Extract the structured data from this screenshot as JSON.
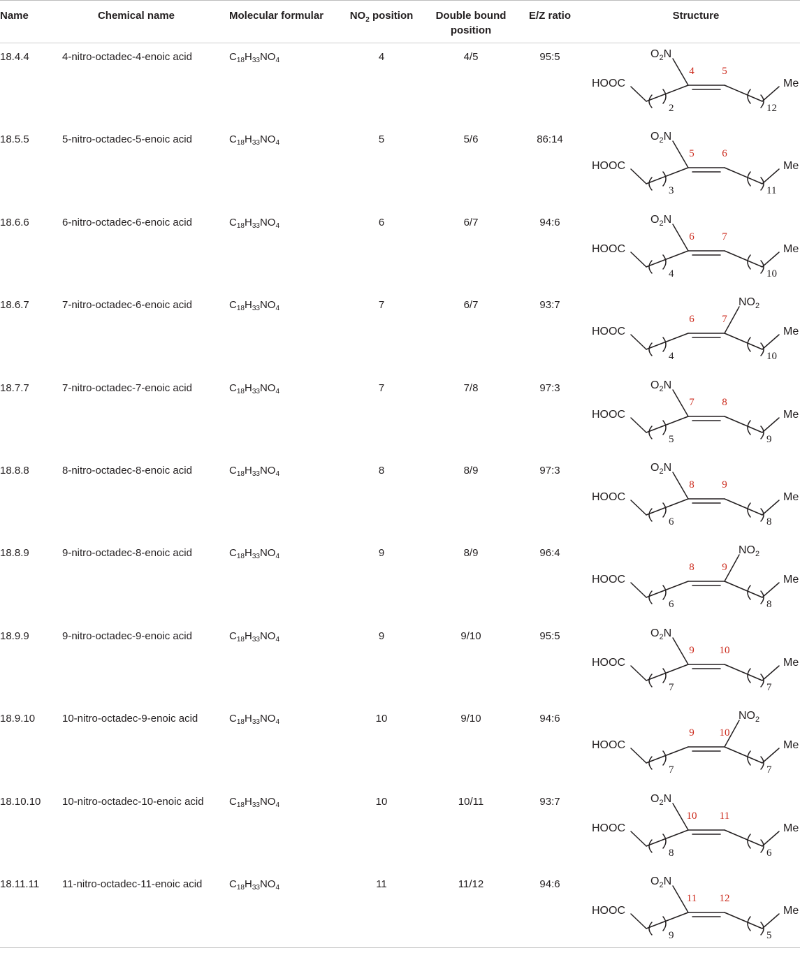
{
  "headers": {
    "name": "Name",
    "chemical_name": "Chemical name",
    "molecular_formular": "Molecular formular",
    "no2_prefix": "NO",
    "no2_sub": "2",
    "no2_suffix": " position",
    "double_bound_line1": "Double bound",
    "double_bound_line2": "position",
    "ez_ratio": "E/Z ratio",
    "structure": "Structure"
  },
  "formula": {
    "c": "C",
    "c_sub": "18",
    "h": "H",
    "h_sub": "33",
    "n": "NO",
    "o_sub": "4"
  },
  "structure_text": {
    "hooc": "HOOC",
    "me": "Me",
    "o2n_o": "O",
    "o2n_sub": "2",
    "o2n_n": "N",
    "no2_no": "NO",
    "no2_sub": "2"
  },
  "colors": {
    "text": "#231f20",
    "locant": "#cc2a1c",
    "rule": "#bdbdbd"
  },
  "rows": [
    {
      "name": "18.4.4",
      "chemical_name": "4-nitro-octadec-4-enoic acid",
      "no2_position": "4",
      "double_bound_position": "4/5",
      "ez_ratio": "95:5",
      "structure": {
        "nitro_on": "left",
        "locant_left": "4",
        "locant_right": "5",
        "n_left": "2",
        "n_right": "12"
      }
    },
    {
      "name": "18.5.5",
      "chemical_name": "5-nitro-octadec-5-enoic acid",
      "no2_position": "5",
      "double_bound_position": "5/6",
      "ez_ratio": "86:14",
      "structure": {
        "nitro_on": "left",
        "locant_left": "5",
        "locant_right": "6",
        "n_left": "3",
        "n_right": "11"
      }
    },
    {
      "name": "18.6.6",
      "chemical_name": "6-nitro-octadec-6-enoic acid",
      "no2_position": "6",
      "double_bound_position": "6/7",
      "ez_ratio": "94:6",
      "structure": {
        "nitro_on": "left",
        "locant_left": "6",
        "locant_right": "7",
        "n_left": "4",
        "n_right": "10"
      }
    },
    {
      "name": "18.6.7",
      "chemical_name": "7-nitro-octadec-6-enoic acid",
      "no2_position": "7",
      "double_bound_position": "6/7",
      "ez_ratio": "93:7",
      "structure": {
        "nitro_on": "right",
        "locant_left": "6",
        "locant_right": "7",
        "n_left": "4",
        "n_right": "10"
      }
    },
    {
      "name": "18.7.7",
      "chemical_name": "7-nitro-octadec-7-enoic acid",
      "no2_position": "7",
      "double_bound_position": "7/8",
      "ez_ratio": "97:3",
      "structure": {
        "nitro_on": "left",
        "locant_left": "7",
        "locant_right": "8",
        "n_left": "5",
        "n_right": "9"
      }
    },
    {
      "name": "18.8.8",
      "chemical_name": "8-nitro-octadec-8-enoic acid",
      "no2_position": "8",
      "double_bound_position": "8/9",
      "ez_ratio": "97:3",
      "structure": {
        "nitro_on": "left",
        "locant_left": "8",
        "locant_right": "9",
        "n_left": "6",
        "n_right": "8"
      }
    },
    {
      "name": "18.8.9",
      "chemical_name": "9-nitro-octadec-8-enoic acid",
      "no2_position": "9",
      "double_bound_position": "8/9",
      "ez_ratio": "96:4",
      "structure": {
        "nitro_on": "right",
        "locant_left": "8",
        "locant_right": "9",
        "n_left": "6",
        "n_right": "8"
      }
    },
    {
      "name": "18.9.9",
      "chemical_name": "9-nitro-octadec-9-enoic acid",
      "no2_position": "9",
      "double_bound_position": "9/10",
      "ez_ratio": "95:5",
      "structure": {
        "nitro_on": "left",
        "locant_left": "9",
        "locant_right": "10",
        "n_left": "7",
        "n_right": "7"
      }
    },
    {
      "name": "18.9.10",
      "chemical_name": "10-nitro-octadec-9-enoic acid",
      "no2_position": "10",
      "double_bound_position": "9/10",
      "ez_ratio": "94:6",
      "structure": {
        "nitro_on": "right",
        "locant_left": "9",
        "locant_right": "10",
        "n_left": "7",
        "n_right": "7"
      }
    },
    {
      "name": "18.10.10",
      "chemical_name": "10-nitro-octadec-10-enoic acid",
      "no2_position": "10",
      "double_bound_position": "10/11",
      "ez_ratio": "93:7",
      "structure": {
        "nitro_on": "left",
        "locant_left": "10",
        "locant_right": "11",
        "n_left": "8",
        "n_right": "6"
      }
    },
    {
      "name": "18.11.11",
      "chemical_name": "11-nitro-octadec-11-enoic acid",
      "no2_position": "11",
      "double_bound_position": "11/12",
      "ez_ratio": "94:6",
      "structure": {
        "nitro_on": "left",
        "locant_left": "11",
        "locant_right": "12",
        "n_left": "9",
        "n_right": "5"
      }
    }
  ]
}
